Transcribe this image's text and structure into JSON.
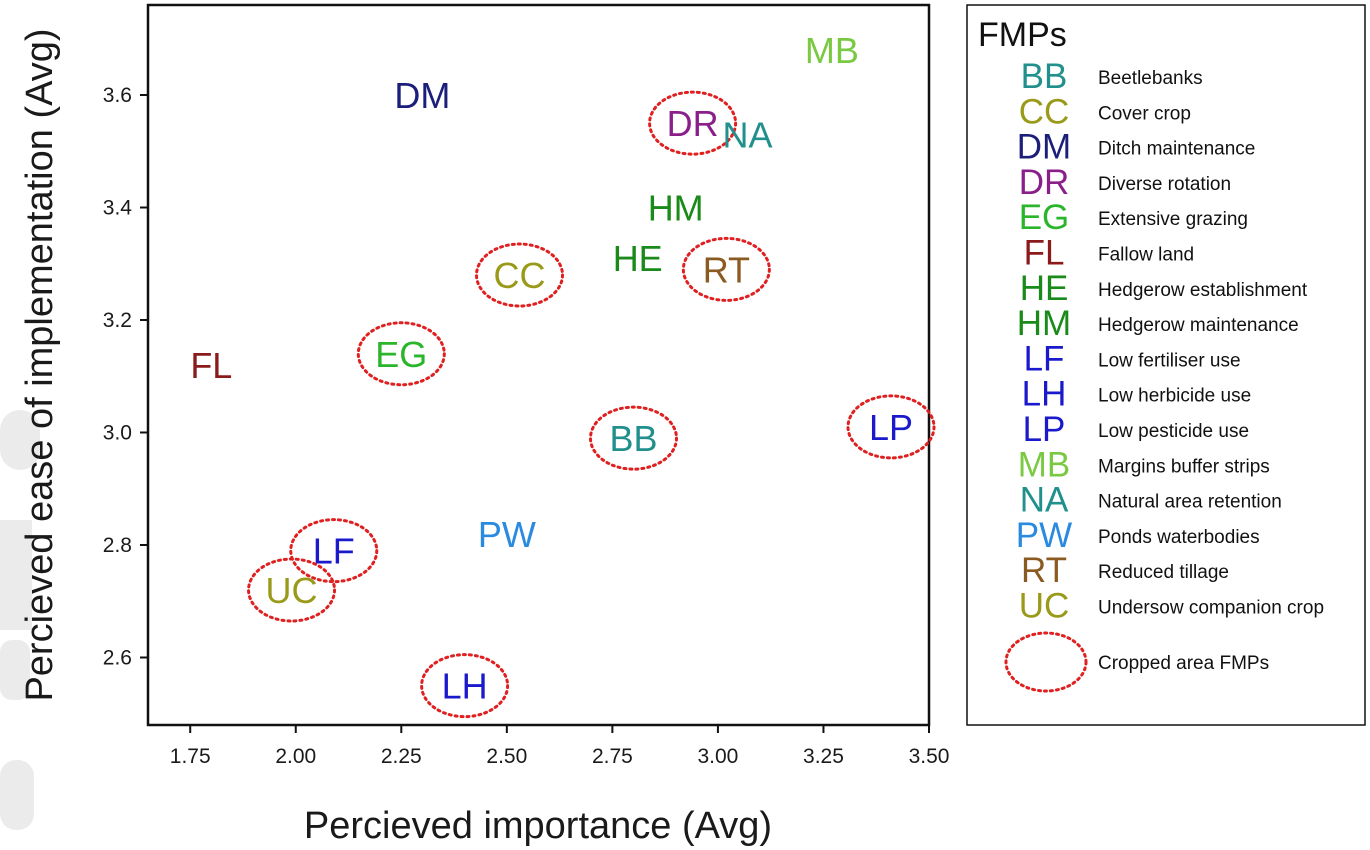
{
  "chart_data": {
    "type": "scatter",
    "xlabel": "Percieved importance (Avg)",
    "ylabel": "Percieved ease of implementation (Avg)",
    "xlim": [
      1.65,
      3.5
    ],
    "ylim": [
      2.48,
      3.76
    ],
    "x_ticks": [
      "1.75",
      "2.00",
      "2.25",
      "2.50",
      "2.75",
      "3.00",
      "3.25",
      "3.50"
    ],
    "y_ticks": [
      "2.6",
      "2.8",
      "3.0",
      "3.2",
      "3.4",
      "3.6"
    ],
    "points": [
      {
        "code": "MB",
        "x": 3.27,
        "y": 3.68,
        "color": "#7ac943",
        "cropped": false
      },
      {
        "code": "DM",
        "x": 2.3,
        "y": 3.6,
        "color": "#1b1f7a",
        "cropped": false
      },
      {
        "code": "DR",
        "x": 2.94,
        "y": 3.55,
        "color": "#8a1f8a",
        "cropped": true
      },
      {
        "code": "NA",
        "x": 3.07,
        "y": 3.53,
        "color": "#21908c",
        "cropped": false
      },
      {
        "code": "HM",
        "x": 2.9,
        "y": 3.4,
        "color": "#1a8a1a",
        "cropped": false
      },
      {
        "code": "HE",
        "x": 2.81,
        "y": 3.31,
        "color": "#1a8a1a",
        "cropped": false
      },
      {
        "code": "RT",
        "x": 3.02,
        "y": 3.29,
        "color": "#8a5a20",
        "cropped": true
      },
      {
        "code": "CC",
        "x": 2.53,
        "y": 3.28,
        "color": "#9a9a1a",
        "cropped": true
      },
      {
        "code": "EG",
        "x": 2.25,
        "y": 3.14,
        "color": "#2ab52a",
        "cropped": true
      },
      {
        "code": "FL",
        "x": 1.8,
        "y": 3.12,
        "color": "#8b1a1a",
        "cropped": false
      },
      {
        "code": "LP",
        "x": 3.41,
        "y": 3.01,
        "color": "#1a1acc",
        "cropped": true
      },
      {
        "code": "BB",
        "x": 2.8,
        "y": 2.99,
        "color": "#21908c",
        "cropped": true
      },
      {
        "code": "PW",
        "x": 2.5,
        "y": 2.82,
        "color": "#2a8ae0",
        "cropped": false
      },
      {
        "code": "LF",
        "x": 2.09,
        "y": 2.79,
        "color": "#1a1acc",
        "cropped": true
      },
      {
        "code": "UC",
        "x": 1.99,
        "y": 2.72,
        "color": "#9a9a1a",
        "cropped": true
      },
      {
        "code": "LH",
        "x": 2.4,
        "y": 2.55,
        "color": "#1a1acc",
        "cropped": true
      }
    ],
    "legend": {
      "title": "FMPs",
      "placement": "right",
      "entries": [
        {
          "code": "BB",
          "label": "Beetlebanks",
          "color": "#21908c"
        },
        {
          "code": "CC",
          "label": "Cover crop",
          "color": "#9a9a1a"
        },
        {
          "code": "DM",
          "label": "Ditch maintenance",
          "color": "#1b1f7a"
        },
        {
          "code": "DR",
          "label": "Diverse rotation",
          "color": "#8a1f8a"
        },
        {
          "code": "EG",
          "label": "Extensive grazing",
          "color": "#2ab52a"
        },
        {
          "code": "FL",
          "label": "Fallow land",
          "color": "#8b1a1a"
        },
        {
          "code": "HE",
          "label": "Hedgerow establishment",
          "color": "#1a8a1a"
        },
        {
          "code": "HM",
          "label": "Hedgerow maintenance",
          "color": "#1a8a1a"
        },
        {
          "code": "LF",
          "label": "Low fertiliser use",
          "color": "#1a1acc"
        },
        {
          "code": "LH",
          "label": "Low herbicide use",
          "color": "#1a1acc"
        },
        {
          "code": "LP",
          "label": "Low pesticide use",
          "color": "#1a1acc"
        },
        {
          "code": "MB",
          "label": "Margins buffer strips",
          "color": "#7ac943"
        },
        {
          "code": "NA",
          "label": "Natural area retention",
          "color": "#21908c"
        },
        {
          "code": "PW",
          "label": "Ponds waterbodies",
          "color": "#2a8ae0"
        },
        {
          "code": "RT",
          "label": "Reduced tillage",
          "color": "#8a5a20"
        },
        {
          "code": "UC",
          "label": "Undersow companion crop",
          "color": "#9a9a1a"
        }
      ],
      "cropped_label": "Cropped area FMPs"
    },
    "grid": false,
    "circle_color": "#e02020"
  }
}
